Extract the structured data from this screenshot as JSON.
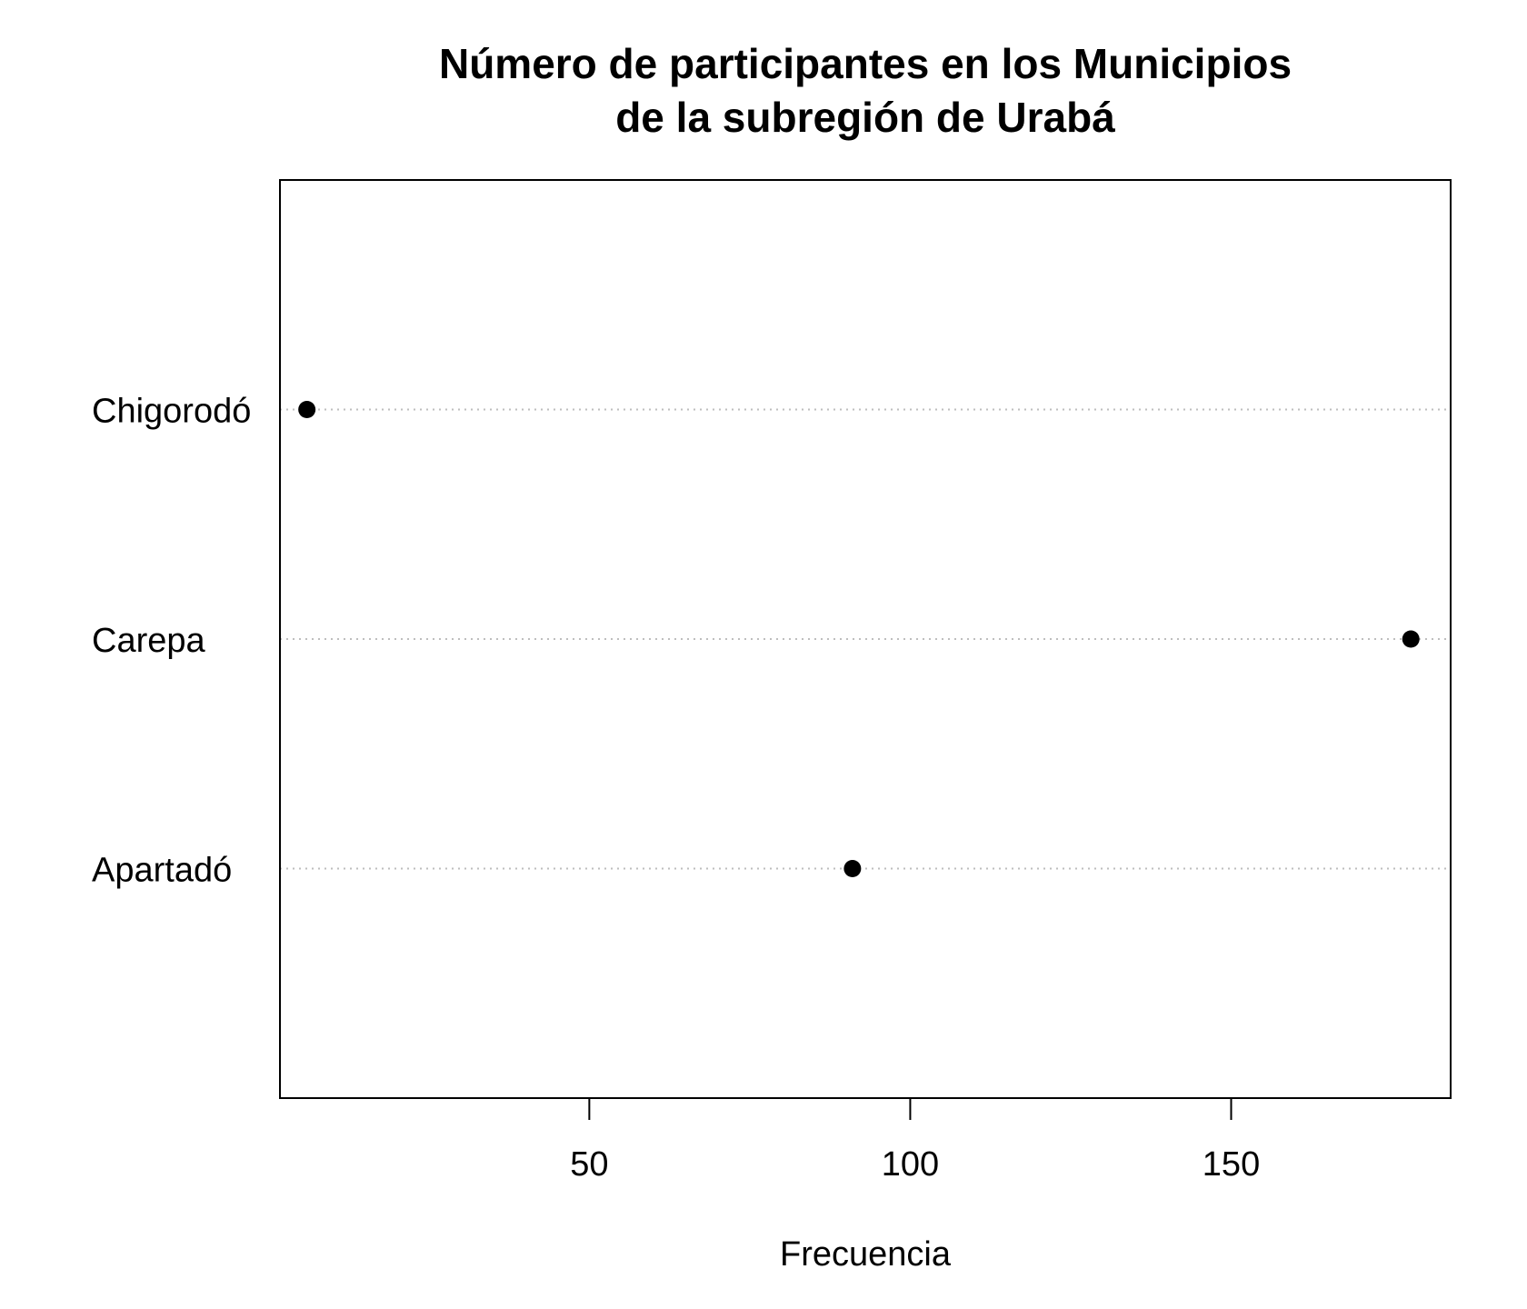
{
  "chart_data": {
    "type": "scatter",
    "subtype": "dotchart",
    "title_lines": [
      "Número de participantes en los Municipios",
      "de la subregión de Urabá"
    ],
    "xlabel": "Frecuencia",
    "ylabel": "",
    "categories": [
      "Apartadó",
      "Carepa",
      "Chigorodó"
    ],
    "values": [
      91,
      178,
      6
    ],
    "xlim": [
      1.8,
      184.2
    ],
    "xticks": [
      50,
      100,
      150
    ],
    "xtick_labels": [
      "50",
      "100",
      "150"
    ],
    "grid": "dotted horizontal guide lines",
    "legend": "none",
    "point_color": "#000000",
    "guide_color": "#bebebe"
  }
}
